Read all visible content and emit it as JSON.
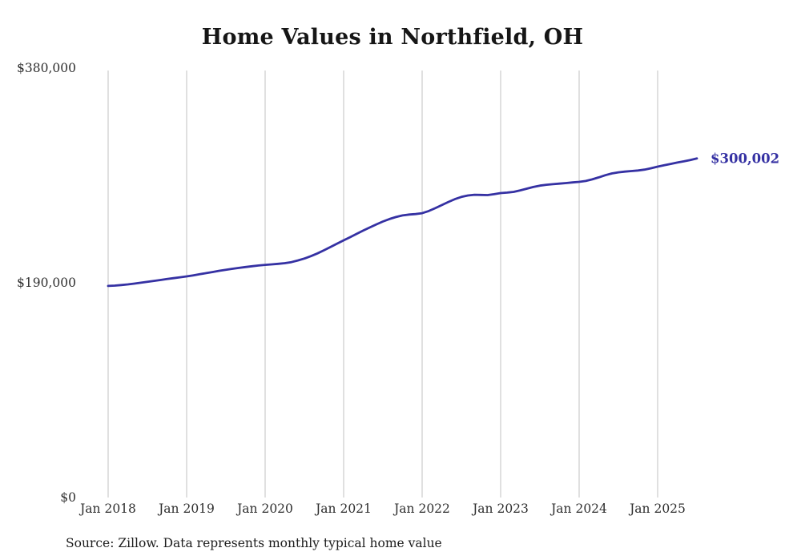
{
  "title": "Home Values in Northfield, OH",
  "source_note": "Source: Zillow. Data represents monthly typical home value",
  "end_label": "$300,002",
  "colors": {
    "line": "#3531a3",
    "gridline": "#cccccc",
    "axis_text": "#2e2e2e",
    "title_text": "#161616"
  },
  "chart_data": {
    "type": "line",
    "title": "Home Values in Northfield, OH",
    "series_name": "Typical home value",
    "x_start": "Jan 2018",
    "x_frequency": "monthly",
    "x_end": "Jul 2025",
    "x_tick_labels": [
      "Jan 2018",
      "Jan 2019",
      "Jan 2020",
      "Jan 2021",
      "Jan 2022",
      "Jan 2023",
      "Jan 2024",
      "Jan 2025"
    ],
    "y_ticks": [
      0,
      190000,
      380000
    ],
    "y_tick_labels": [
      "$0",
      "$190,000",
      "$380,000"
    ],
    "ylim": [
      0,
      380000
    ],
    "grid": "vertical-only",
    "legend": "none",
    "final_value": 300002,
    "values": [
      187200,
      187500,
      188000,
      188600,
      189300,
      190100,
      190900,
      191700,
      192500,
      193300,
      194100,
      194900,
      195700,
      196600,
      197600,
      198600,
      199600,
      200600,
      201500,
      202400,
      203200,
      204000,
      204700,
      205300,
      205900,
      206300,
      206800,
      207400,
      208300,
      209800,
      211500,
      213600,
      216000,
      218800,
      221700,
      224700,
      227600,
      230400,
      233300,
      236200,
      239000,
      241700,
      244200,
      246400,
      248200,
      249600,
      250400,
      250800,
      251600,
      253500,
      256000,
      258800,
      261500,
      264000,
      266000,
      267300,
      267900,
      267800,
      267600,
      268400,
      269400,
      269800,
      270500,
      271800,
      273300,
      274800,
      276000,
      276800,
      277300,
      277800,
      278300,
      278800,
      279300,
      280100,
      281500,
      283300,
      285200,
      286800,
      287800,
      288400,
      288900,
      289400,
      290200,
      291400,
      292800,
      294000,
      295200,
      296400,
      297500,
      298700,
      300002
    ]
  }
}
